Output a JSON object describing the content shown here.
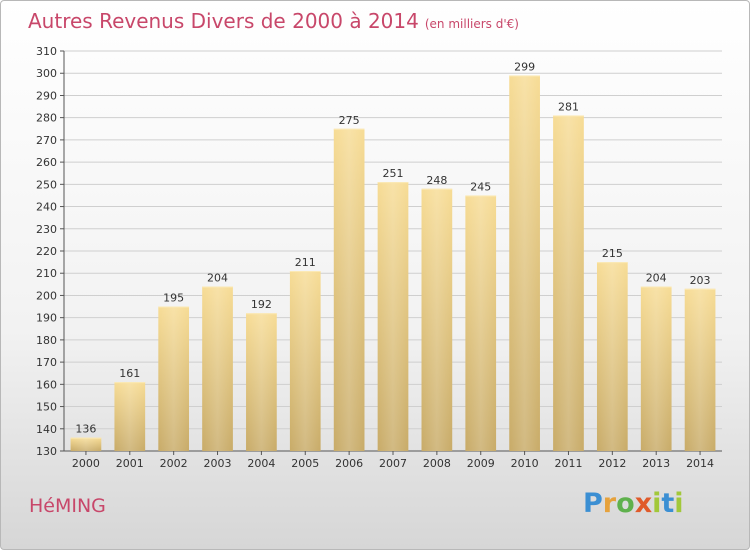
{
  "title": "Autres Revenus Divers de 2000 à 2014",
  "subtitle": "(en milliers d'€)",
  "commune": "HéMING",
  "logo": {
    "text": "Proxiti",
    "letters": [
      {
        "ch": "P",
        "cls": "p"
      },
      {
        "ch": "r",
        "cls": "r"
      },
      {
        "ch": "o",
        "cls": "o"
      },
      {
        "ch": "x",
        "cls": "x"
      },
      {
        "ch": "i",
        "cls": "i"
      },
      {
        "ch": "t",
        "cls": "t"
      },
      {
        "ch": "i",
        "cls": "i"
      }
    ]
  },
  "colors": {
    "bar_top": "#f7dc95",
    "bar_bottom": "#c8ab68",
    "title": "#c8476a",
    "grid": "#cfcfcf"
  },
  "chart_data": {
    "type": "bar",
    "categories": [
      "2000",
      "2001",
      "2002",
      "2003",
      "2004",
      "2005",
      "2006",
      "2007",
      "2008",
      "2009",
      "2010",
      "2011",
      "2012",
      "2013",
      "2014"
    ],
    "values": [
      136,
      161,
      195,
      204,
      192,
      211,
      275,
      251,
      248,
      245,
      299,
      281,
      215,
      204,
      203
    ],
    "ylim": [
      130,
      310
    ],
    "yticks": [
      130,
      140,
      150,
      160,
      170,
      180,
      190,
      200,
      210,
      220,
      230,
      240,
      250,
      260,
      270,
      280,
      290,
      300,
      310
    ],
    "grid": true,
    "xlabel": "",
    "ylabel": ""
  }
}
